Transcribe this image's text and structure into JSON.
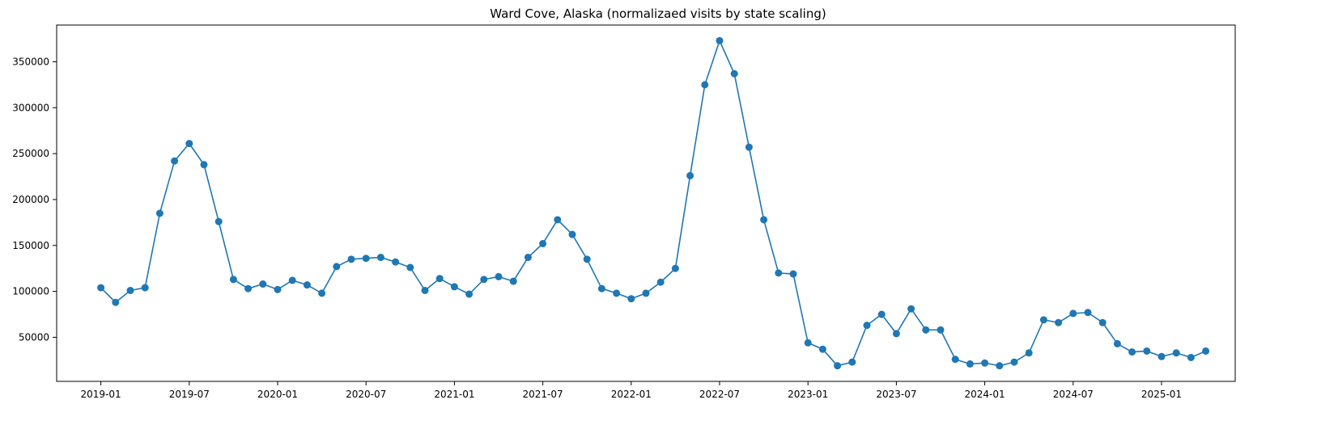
{
  "chart_data": {
    "type": "line",
    "title": "Ward Cove, Alaska (normalizaed visits by state scaling)",
    "xlabel": "",
    "ylabel": "",
    "grid": false,
    "marker": "circle",
    "color": "#1f77b4",
    "x_ticks": [
      "2019-01",
      "2019-07",
      "2020-01",
      "2020-07",
      "2021-01",
      "2021-07",
      "2022-01",
      "2022-07",
      "2023-01",
      "2023-07",
      "2024-01",
      "2024-07",
      "2025-01"
    ],
    "y_ticks": [
      50000,
      100000,
      150000,
      200000,
      250000,
      300000,
      350000
    ],
    "x_range": [
      "2018-10",
      "2025-06"
    ],
    "ylim": [
      2000,
      390000
    ],
    "series": [
      {
        "x": [
          "2019-01",
          "2019-02",
          "2019-03",
          "2019-04",
          "2019-05",
          "2019-06",
          "2019-07",
          "2019-08",
          "2019-09",
          "2019-10",
          "2019-11",
          "2019-12",
          "2020-01",
          "2020-02",
          "2020-03",
          "2020-04",
          "2020-05",
          "2020-06",
          "2020-07",
          "2020-08",
          "2020-09",
          "2020-10",
          "2020-11",
          "2020-12",
          "2021-01",
          "2021-02",
          "2021-03",
          "2021-04",
          "2021-05",
          "2021-06",
          "2021-07",
          "2021-08",
          "2021-09",
          "2021-10",
          "2021-11",
          "2021-12",
          "2022-01",
          "2022-02",
          "2022-03",
          "2022-04",
          "2022-05",
          "2022-06",
          "2022-07",
          "2022-08",
          "2022-09",
          "2022-10",
          "2022-11",
          "2022-12",
          "2023-01",
          "2023-02",
          "2023-03",
          "2023-04",
          "2023-05",
          "2023-06",
          "2023-07",
          "2023-08",
          "2023-09",
          "2023-10",
          "2023-11",
          "2023-12",
          "2024-01",
          "2024-02",
          "2024-03",
          "2024-04",
          "2024-05",
          "2024-06",
          "2024-07",
          "2024-08",
          "2024-09",
          "2024-10",
          "2024-11",
          "2024-12",
          "2025-01",
          "2025-02",
          "2025-03",
          "2025-04"
        ],
        "values": [
          104000,
          88000,
          101000,
          104000,
          185000,
          242000,
          261000,
          238000,
          176000,
          113000,
          103000,
          108000,
          102000,
          112000,
          107000,
          98000,
          127000,
          135000,
          136000,
          137000,
          132000,
          126000,
          101000,
          114000,
          105000,
          97000,
          113000,
          116000,
          111000,
          137000,
          152000,
          178000,
          162000,
          135000,
          103000,
          98000,
          92000,
          98000,
          110000,
          125000,
          226000,
          325000,
          373000,
          337000,
          257000,
          178000,
          120000,
          119000,
          44000,
          37000,
          19000,
          23000,
          63000,
          75000,
          54000,
          81000,
          58000,
          58000,
          26000,
          21000,
          22000,
          19000,
          23000,
          33000,
          69000,
          66000,
          76000,
          77000,
          66000,
          43000,
          34000,
          35000,
          29000,
          33000,
          28000,
          35000
        ]
      }
    ]
  }
}
